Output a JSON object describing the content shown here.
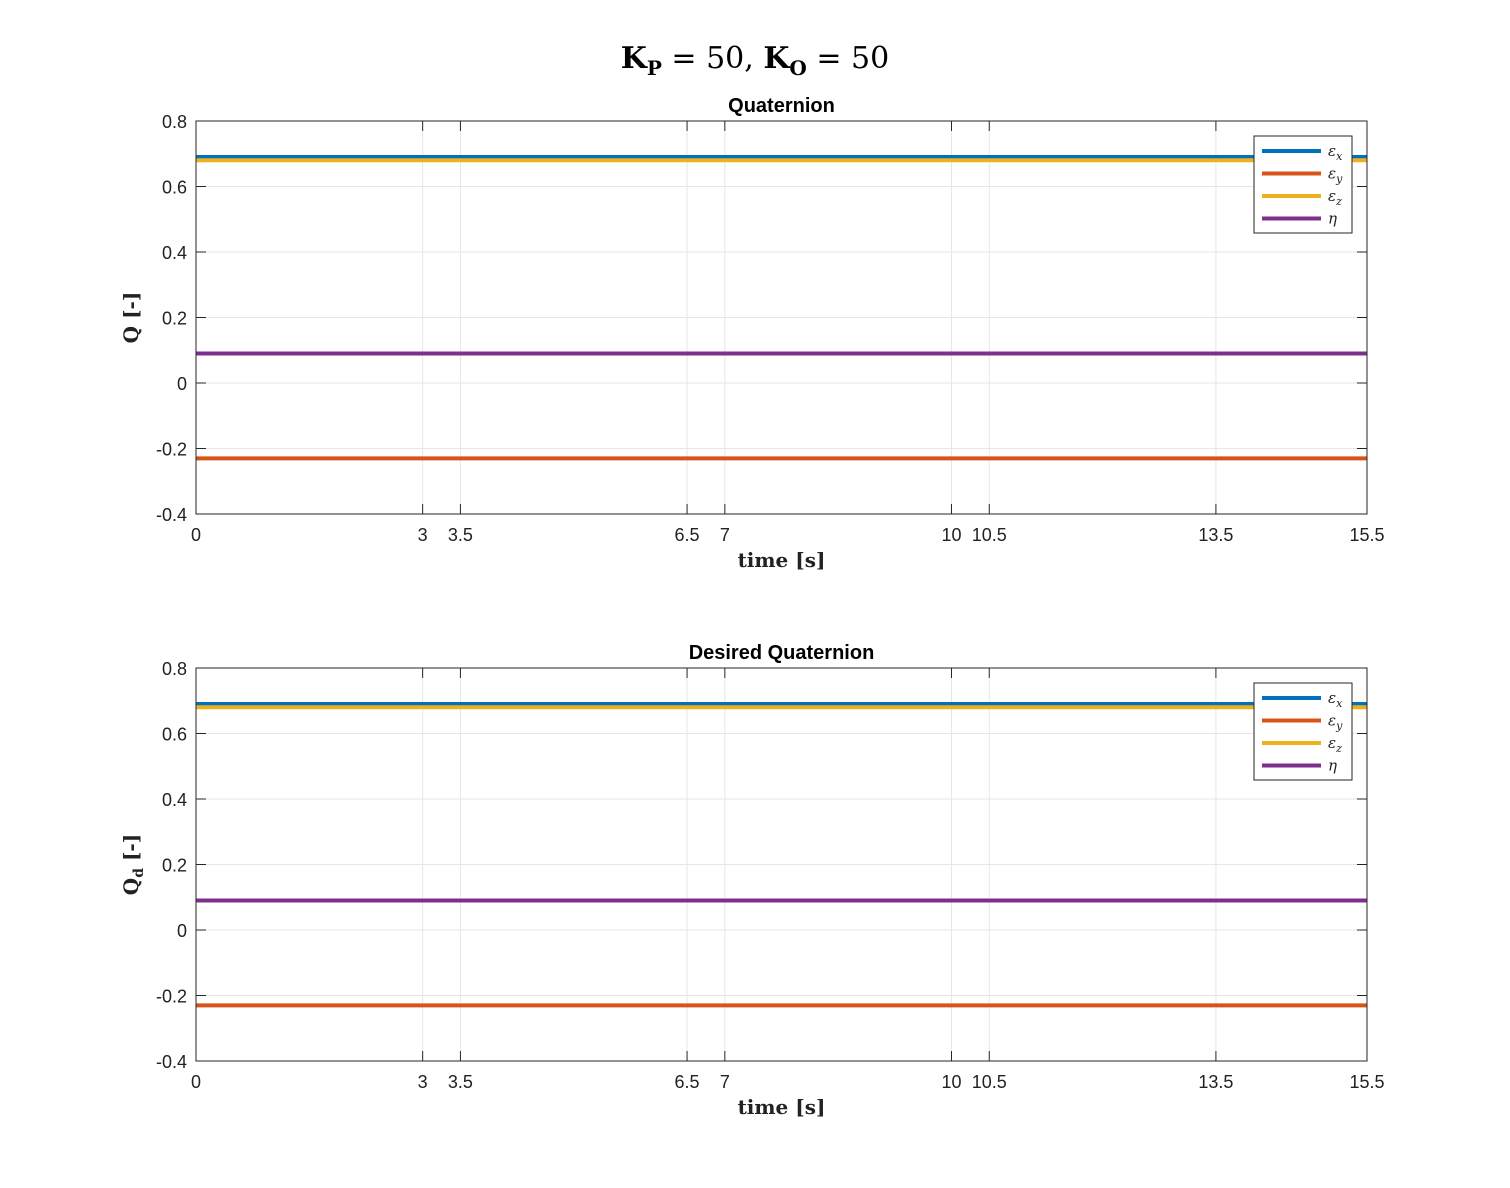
{
  "figure": {
    "suptitle": {
      "k1": "K",
      "k1_sub": "P",
      "eq1": " = 50, ",
      "k2": "K",
      "k2_sub": "O",
      "eq2": " = 50"
    }
  },
  "colors": {
    "epsilon_x": "#0072BD",
    "epsilon_y": "#D95319",
    "epsilon_z": "#EDB120",
    "eta": "#7E2F8E",
    "grid": "#e6e6e6",
    "axes": "#262626"
  },
  "chart_data": [
    {
      "type": "line",
      "title": "Quaternion",
      "xlabel": "time [s]",
      "ylabel": "Q [-]",
      "ylabel_main": "Q",
      "ylabel_sub": "",
      "ylabel_tail": " [-]",
      "xlim": [
        0,
        15.5
      ],
      "ylim": [
        -0.4,
        0.8
      ],
      "xticks": [
        0,
        3,
        3.5,
        6.5,
        7,
        10,
        10.5,
        13.5,
        15.5
      ],
      "yticks": [
        -0.4,
        -0.2,
        0,
        0.2,
        0.4,
        0.6,
        0.8
      ],
      "grid": true,
      "legend_position": "top-right",
      "series": [
        {
          "name": "εx",
          "symbol": "ε",
          "sub": "x",
          "color_key": "epsilon_x",
          "x": [
            0,
            15.5
          ],
          "y": [
            0.69,
            0.69
          ]
        },
        {
          "name": "εy",
          "symbol": "ε",
          "sub": "y",
          "color_key": "epsilon_y",
          "x": [
            0,
            15.5
          ],
          "y": [
            -0.23,
            -0.23
          ]
        },
        {
          "name": "εz",
          "symbol": "ε",
          "sub": "z",
          "color_key": "epsilon_z",
          "x": [
            0,
            15.5
          ],
          "y": [
            0.68,
            0.68
          ]
        },
        {
          "name": "η",
          "symbol": "η",
          "sub": "",
          "color_key": "eta",
          "x": [
            0,
            15.5
          ],
          "y": [
            0.09,
            0.09
          ]
        }
      ]
    },
    {
      "type": "line",
      "title": "Desired Quaternion",
      "xlabel": "time [s]",
      "ylabel": "Qd [-]",
      "ylabel_main": "Q",
      "ylabel_sub": "d",
      "ylabel_tail": " [-]",
      "xlim": [
        0,
        15.5
      ],
      "ylim": [
        -0.4,
        0.8
      ],
      "xticks": [
        0,
        3,
        3.5,
        6.5,
        7,
        10,
        10.5,
        13.5,
        15.5
      ],
      "yticks": [
        -0.4,
        -0.2,
        0,
        0.2,
        0.4,
        0.6,
        0.8
      ],
      "grid": true,
      "legend_position": "top-right",
      "series": [
        {
          "name": "εx",
          "symbol": "ε",
          "sub": "x",
          "color_key": "epsilon_x",
          "x": [
            0,
            15.5
          ],
          "y": [
            0.69,
            0.69
          ]
        },
        {
          "name": "εy",
          "symbol": "ε",
          "sub": "y",
          "color_key": "epsilon_y",
          "x": [
            0,
            15.5
          ],
          "y": [
            -0.23,
            -0.23
          ]
        },
        {
          "name": "εz",
          "symbol": "ε",
          "sub": "z",
          "color_key": "epsilon_z",
          "x": [
            0,
            15.5
          ],
          "y": [
            0.68,
            0.68
          ]
        },
        {
          "name": "η",
          "symbol": "η",
          "sub": "",
          "color_key": "eta",
          "x": [
            0,
            15.5
          ],
          "y": [
            0.09,
            0.09
          ]
        }
      ]
    }
  ]
}
